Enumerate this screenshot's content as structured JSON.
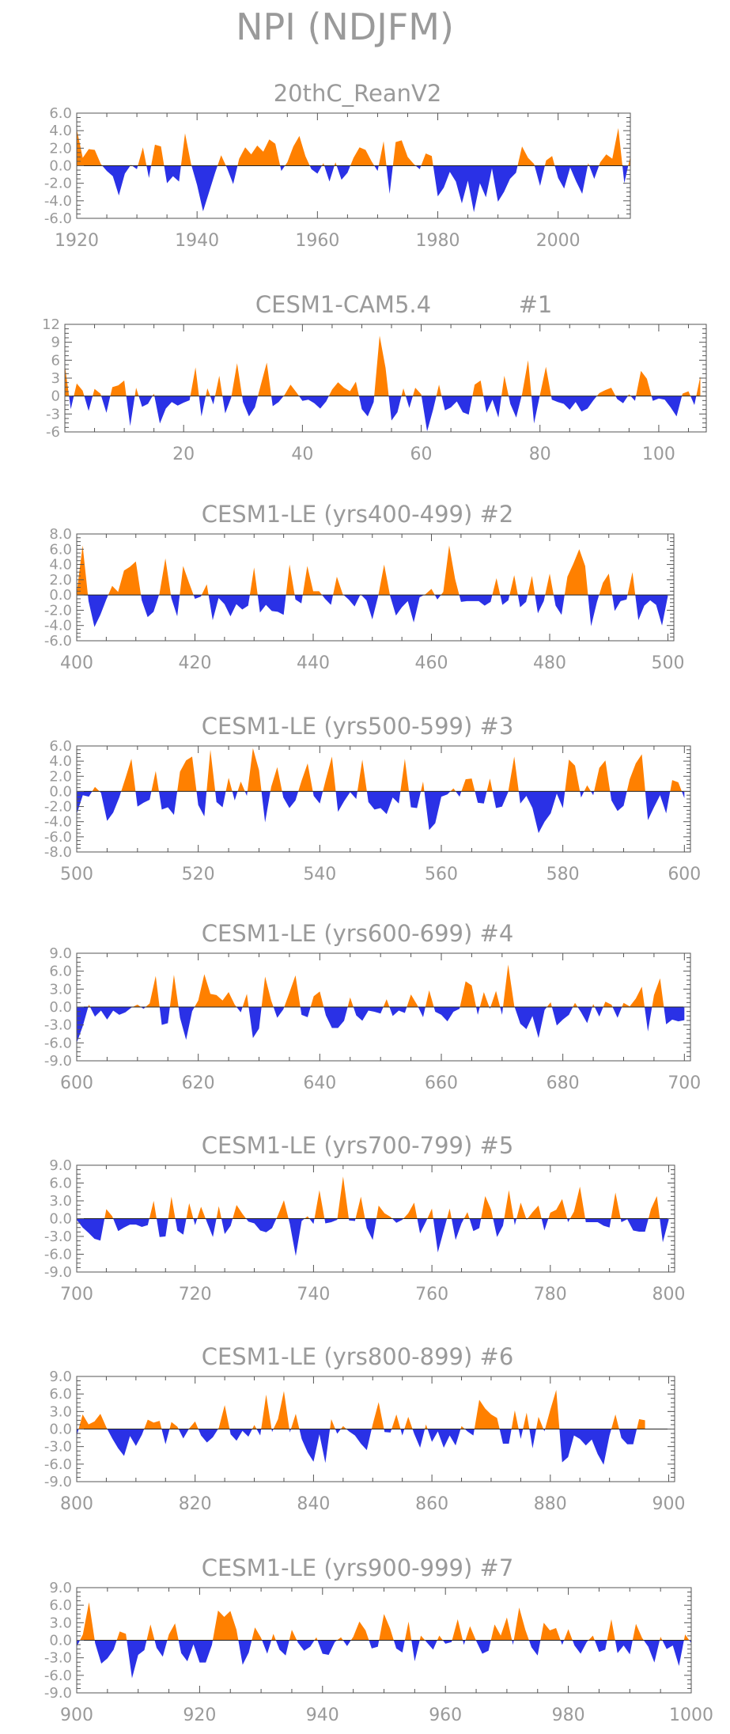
{
  "title": "NPI (NDJFM)",
  "colors": {
    "positive": "#ff8000",
    "negative": "#2a31e6",
    "text": "#9a9a9a",
    "axis": "#555555"
  },
  "chart_data": [
    {
      "type": "area",
      "title": "20thC_ReanV2",
      "xlim": [
        1920,
        2012
      ],
      "ylim": [
        -6,
        6
      ],
      "yticks": [
        6.0,
        4.0,
        2.0,
        0.0,
        -2.0,
        -4.0,
        -6.0
      ],
      "yticklabels": [
        "6.0",
        "4.0",
        "2.0",
        "0.0",
        "-2.0",
        "-4.0",
        "-6.0"
      ],
      "xticks": [
        1920,
        1940,
        1960,
        1980,
        2000
      ],
      "xticklabels": [
        "1920",
        "1940",
        "1960",
        "1980",
        "2000"
      ],
      "x_start": 1920,
      "values": [
        4.2,
        0.9,
        1.9,
        1.8,
        0.2,
        -0.6,
        -1.2,
        -3.4,
        -0.9,
        0.1,
        -0.4,
        2.1,
        -1.4,
        2.4,
        2.2,
        -2.0,
        -1.2,
        -1.8,
        3.7,
        0.2,
        -2.2,
        -5.2,
        -3.0,
        -0.8,
        1.2,
        -0.3,
        -2.1,
        0.8,
        2.1,
        1.3,
        2.3,
        1.6,
        3.0,
        2.5,
        -0.6,
        0.4,
        2.2,
        3.4,
        1.1,
        -0.4,
        -0.9,
        0.3,
        -1.8,
        0.4,
        -1.6,
        -0.8,
        0.9,
        2.1,
        1.8,
        0.5,
        -0.6,
        2.8,
        -3.2,
        2.7,
        2.9,
        1.0,
        0.2,
        -0.4,
        1.4,
        1.1,
        -3.5,
        -2.5,
        -0.7,
        -1.8,
        -4.3,
        -1.7,
        -5.3,
        -2.0,
        -3.6,
        -0.3,
        -4.1,
        -3.0,
        -1.5,
        -0.8,
        2.2,
        0.9,
        0.2,
        -2.3,
        0.6,
        1.1,
        -1.4,
        -2.6,
        -0.2,
        -1.8,
        -3.2,
        0.3,
        -1.5,
        0.4,
        1.3,
        0.8,
        4.3,
        -2.0,
        1.1
      ]
    },
    {
      "type": "area",
      "title": "CESM1-CAM5.4",
      "label": "#1",
      "xlim": [
        0,
        108
      ],
      "ylim": [
        -6,
        12
      ],
      "yticks": [
        12,
        9,
        6,
        3,
        0,
        -3,
        -6
      ],
      "yticklabels": [
        "12",
        "9",
        "6",
        "3",
        "0",
        "-3",
        "-6"
      ],
      "xticks": [
        20,
        40,
        60,
        80,
        100
      ],
      "xticklabels": [
        "20",
        "40",
        "60",
        "80",
        "100"
      ],
      "x_start": 0,
      "values": [
        5.2,
        -2.2,
        2.1,
        0.9,
        -2.5,
        1.2,
        0.4,
        -2.8,
        1.5,
        1.8,
        2.6,
        -5.0,
        1.4,
        -1.8,
        -1.3,
        0.4,
        -4.6,
        -2.1,
        -1.0,
        -1.6,
        -1.1,
        -0.7,
        4.8,
        -3.4,
        1.3,
        -1.4,
        3.4,
        -2.9,
        -0.3,
        5.5,
        -1.0,
        -3.4,
        -1.9,
        1.9,
        5.6,
        -1.7,
        -1.0,
        0.2,
        1.9,
        0.6,
        -0.8,
        -0.6,
        -1.2,
        -2.1,
        -0.9,
        1.1,
        2.3,
        1.4,
        0.8,
        2.4,
        -2.2,
        -3.4,
        -1.0,
        10.1,
        4.7,
        -4.1,
        -2.7,
        1.3,
        -2.0,
        1.4,
        0.3,
        -5.9,
        -2.3,
        1.9,
        -2.4,
        -1.9,
        -0.9,
        -2.7,
        -3.1,
        1.9,
        2.6,
        -2.8,
        -0.6,
        -3.6,
        3.4,
        -1.3,
        -3.6,
        0.4,
        6.0,
        -4.6,
        0.2,
        4.9,
        -0.6,
        -1.0,
        -1.3,
        -2.3,
        -1.0,
        -2.6,
        -2.1,
        -0.7,
        0.5,
        1.0,
        1.4,
        -0.5,
        -1.2,
        0.3,
        -0.8,
        4.2,
        2.9,
        -0.8,
        -0.4,
        -0.6,
        -1.9,
        -3.4,
        0.4,
        0.8,
        -1.5,
        3.3
      ]
    },
    {
      "type": "area",
      "title": "CESM1-LE (yrs400-499)",
      "label": "#2",
      "xlim": [
        400,
        501
      ],
      "ylim": [
        -6,
        8
      ],
      "yticks": [
        8.0,
        6.0,
        4.0,
        2.0,
        0.0,
        -2.0,
        -4.0,
        -6.0
      ],
      "yticklabels": [
        "8.0",
        "6.0",
        "4.0",
        "2.0",
        "0.0",
        "-2.0",
        "-4.0",
        "-6.0"
      ],
      "xticks": [
        400,
        420,
        440,
        460,
        480,
        500
      ],
      "xticklabels": [
        "400",
        "420",
        "440",
        "460",
        "480",
        "500"
      ],
      "x_start": 400,
      "values": [
        0.3,
        6.5,
        -0.8,
        -4.2,
        -2.6,
        -0.6,
        1.2,
        0.4,
        3.2,
        3.7,
        4.4,
        -0.7,
        -2.9,
        -2.2,
        0.2,
        4.8,
        -0.4,
        -2.8,
        3.8,
        1.6,
        -0.5,
        -0.2,
        1.4,
        -3.3,
        -0.4,
        -1.2,
        -2.8,
        -1.2,
        -1.9,
        -1.4,
        3.6,
        -2.3,
        -1.3,
        -2.1,
        -2.2,
        -2.6,
        4.0,
        -0.6,
        -1.1,
        3.8,
        0.5,
        0.5,
        -0.5,
        -1.3,
        2.4,
        0.1,
        -0.6,
        -1.5,
        0.1,
        -0.7,
        -3.2,
        -0.1,
        4.0,
        -0.1,
        -2.7,
        -1.6,
        -0.8,
        -3.6,
        -0.3,
        0.1,
        0.8,
        -0.6,
        0.4,
        6.5,
        2.1,
        -0.9,
        -0.8,
        -0.8,
        -0.8,
        -1.4,
        -0.9,
        2.2,
        -1.3,
        -0.7,
        2.6,
        -1.6,
        -0.9,
        2.5,
        -2.4,
        -0.8,
        2.8,
        -1.4,
        -2.6,
        2.4,
        4.1,
        6.0,
        3.8,
        -4.1,
        -0.9,
        1.6,
        2.8,
        -2.1,
        -0.8,
        -0.6,
        3.0,
        -3.3,
        -1.4,
        -0.7,
        -1.3,
        -4.0,
        -0.1
      ]
    },
    {
      "type": "area",
      "title": "CESM1-LE (yrs500-599)",
      "label": "#3",
      "xlim": [
        500,
        601
      ],
      "ylim": [
        -8,
        6
      ],
      "yticks": [
        6.0,
        4.0,
        2.0,
        0.0,
        -2.0,
        -4.0,
        -6.0,
        -8.0
      ],
      "yticklabels": [
        "6.0",
        "4.0",
        "2.0",
        "0.0",
        "-2.0",
        "-4.0",
        "-6.0",
        "-8.0"
      ],
      "xticks": [
        500,
        520,
        540,
        560,
        580,
        600
      ],
      "xticklabels": [
        "500",
        "520",
        "540",
        "560",
        "580",
        "600"
      ],
      "x_start": 500,
      "values": [
        -3.0,
        -0.5,
        -0.7,
        0.6,
        -0.2,
        -3.9,
        -2.8,
        -0.8,
        1.7,
        4.3,
        -2.0,
        -1.5,
        -1.1,
        2.7,
        -2.4,
        -2.1,
        -3.1,
        2.6,
        4.1,
        4.6,
        -1.8,
        -3.3,
        5.5,
        -1.4,
        -2.1,
        1.8,
        -1.2,
        1.3,
        -0.6,
        5.7,
        2.8,
        -4.1,
        0.6,
        3.2,
        -0.8,
        -2.2,
        -1.2,
        1.4,
        3.7,
        -0.6,
        -1.6,
        1.6,
        4.6,
        -2.7,
        -1.3,
        -0.1,
        -1.0,
        4.2,
        -1.4,
        -2.4,
        -2.2,
        -3.0,
        -0.8,
        -1.6,
        4.3,
        -2.1,
        -2.2,
        1.3,
        -5.1,
        -4.2,
        -0.7,
        -0.4,
        0.4,
        -0.7,
        1.6,
        1.7,
        -1.5,
        -1.6,
        1.7,
        -2.2,
        -2.0,
        -0.1,
        4.6,
        -1.6,
        -0.6,
        -2.2,
        -5.5,
        -4.0,
        -2.9,
        -0.3,
        -2.2,
        4.2,
        3.4,
        -0.8,
        0.8,
        -0.5,
        3.1,
        4.1,
        -1.2,
        -2.6,
        -1.9,
        1.6,
        3.7,
        4.9,
        -3.8,
        -2.1,
        -0.5,
        -2.9,
        1.5,
        1.2,
        -0.9
      ]
    },
    {
      "type": "area",
      "title": "CESM1-LE (yrs600-699)",
      "label": "#4",
      "xlim": [
        600,
        701
      ],
      "ylim": [
        -9,
        9
      ],
      "yticks": [
        9.0,
        6.0,
        3.0,
        0.0,
        -3.0,
        -6.0,
        -9.0
      ],
      "yticklabels": [
        "9.0",
        "6.0",
        "3.0",
        "0.0",
        "-3.0",
        "-6.0",
        "-9.0"
      ],
      "xticks": [
        600,
        620,
        640,
        660,
        680,
        700
      ],
      "xticklabels": [
        "600",
        "620",
        "640",
        "660",
        "680",
        "700"
      ],
      "x_start": 600,
      "values": [
        -6.0,
        -3.2,
        0.4,
        -1.6,
        -0.6,
        -2.1,
        -0.6,
        -1.3,
        -0.9,
        -0.1,
        0.4,
        -0.3,
        0.6,
        5.2,
        -3.0,
        -2.7,
        5.4,
        -1.8,
        -5.5,
        -0.7,
        1.1,
        5.5,
        2.2,
        2.0,
        1.1,
        2.5,
        0.4,
        -0.9,
        2.2,
        -5.2,
        -3.6,
        5.1,
        1.1,
        -1.8,
        -0.4,
        2.4,
        5.3,
        -1.3,
        -1.7,
        1.8,
        2.6,
        -1.4,
        -3.5,
        -3.5,
        -2.3,
        1.6,
        -1.4,
        -2.3,
        -0.6,
        -0.8,
        -1.1,
        1.3,
        -1.5,
        -0.6,
        -1.0,
        2.1,
        0.4,
        -1.7,
        2.8,
        -0.8,
        -1.3,
        -2.4,
        -0.8,
        -0.3,
        4.3,
        3.6,
        -1.3,
        2.5,
        -0.3,
        2.7,
        -1.3,
        7.1,
        0.2,
        -2.8,
        -3.7,
        -1.5,
        -5.2,
        -0.5,
        0.8,
        -3.1,
        -2.1,
        -1.3,
        0.7,
        -0.9,
        -2.7,
        0.5,
        -1.6,
        0.9,
        0.4,
        -1.8,
        0.7,
        0.1,
        1.4,
        3.4,
        -4.1,
        2.0,
        4.8,
        -2.9,
        -2.1,
        -2.4,
        -2.2
      ]
    },
    {
      "type": "area",
      "title": "CESM1-LE (yrs700-799)",
      "label": "#5",
      "xlim": [
        700,
        801
      ],
      "ylim": [
        -9,
        9
      ],
      "yticks": [
        9.0,
        6.0,
        3.0,
        0.0,
        -3.0,
        -6.0,
        -9.0
      ],
      "yticklabels": [
        "9.0",
        "6.0",
        "3.0",
        "0.0",
        "-3.0",
        "-6.0",
        "-9.0"
      ],
      "xticks": [
        700,
        720,
        740,
        760,
        780,
        800
      ],
      "xticklabels": [
        "700",
        "720",
        "740",
        "760",
        "780",
        "800"
      ],
      "x_start": 700,
      "values": [
        -0.2,
        -1.5,
        -2.4,
        -3.4,
        -3.7,
        1.6,
        0.4,
        -2.1,
        -1.5,
        -1.0,
        -1.0,
        -1.4,
        -1.1,
        3.0,
        -3.1,
        -3.0,
        3.7,
        -2.0,
        -2.7,
        2.6,
        -1.1,
        2.0,
        -0.6,
        -3.1,
        2.1,
        -2.6,
        -1.2,
        2.3,
        0.8,
        -0.5,
        -0.8,
        -2.0,
        -2.3,
        -1.6,
        0.6,
        3.1,
        -0.9,
        -6.3,
        -0.4,
        0.4,
        -0.9,
        4.8,
        -0.8,
        -0.6,
        -0.2,
        7.1,
        -0.3,
        -0.4,
        3.7,
        -1.6,
        -3.6,
        2.2,
        0.9,
        0.3,
        -0.7,
        -0.2,
        0.9,
        2.7,
        -2.5,
        -0.5,
        1.7,
        -5.7,
        -2.0,
        1.7,
        -3.6,
        -0.8,
        1.1,
        -2.1,
        -1.6,
        3.8,
        1.5,
        -3.1,
        -1.2,
        4.8,
        -1.1,
        2.7,
        -0.2,
        1.1,
        2.2,
        -2.0,
        1.0,
        1.5,
        3.3,
        -0.6,
        1.2,
        5.4,
        -0.6,
        -0.6,
        -0.6,
        -1.2,
        -1.5,
        4.4,
        -0.6,
        -0.1,
        -2.0,
        -2.2,
        -2.2,
        1.6,
        3.8,
        -4.0,
        -0.2
      ]
    },
    {
      "type": "area",
      "title": "CESM1-LE (yrs800-899)",
      "label": "#6",
      "xlim": [
        800,
        901
      ],
      "ylim": [
        -9,
        9
      ],
      "yticks": [
        9.0,
        6.0,
        3.0,
        0.0,
        -3.0,
        -6.0,
        -9.0
      ],
      "yticklabels": [
        "9.0",
        "6.0",
        "3.0",
        "0.0",
        "-3.0",
        "-6.0",
        "-9.0"
      ],
      "xticks": [
        800,
        820,
        840,
        860,
        880,
        900
      ],
      "xticklabels": [
        "800",
        "820",
        "840",
        "860",
        "880",
        "900"
      ],
      "x_start": 800,
      "values": [
        -1.2,
        2.5,
        0.8,
        1.3,
        2.6,
        0.3,
        -1.6,
        -3.3,
        -4.6,
        -1.2,
        -2.9,
        -1.0,
        1.6,
        1.1,
        1.4,
        -2.6,
        1.2,
        0.4,
        -1.6,
        0.1,
        1.3,
        -1.1,
        -2.3,
        -1.4,
        0.2,
        4.1,
        -0.9,
        -2.0,
        -0.3,
        -1.3,
        0.7,
        -1.1,
        5.9,
        -0.5,
        1.7,
        6.5,
        -0.6,
        2.6,
        -1.7,
        -4.0,
        -5.6,
        -0.9,
        -5.8,
        1.7,
        -0.8,
        0.5,
        -0.4,
        -1.1,
        -2.5,
        -3.6,
        0.8,
        4.6,
        -0.5,
        -0.6,
        2.5,
        -1.1,
        2.1,
        -0.8,
        -3.2,
        0.8,
        -2.2,
        -0.4,
        -3.2,
        -1.1,
        -2.8,
        0.5,
        -0.4,
        -1.1,
        5.0,
        3.5,
        2.5,
        1.9,
        -2.5,
        -2.5,
        3.2,
        -1.7,
        2.8,
        -3.3,
        2.1,
        -0.4,
        3.3,
        6.7,
        -5.7,
        -4.8,
        -1.1,
        -1.7,
        -2.8,
        -1.8,
        -4.3,
        -6.1,
        -1.1,
        2.5,
        -1.5,
        -2.6,
        -2.6,
        1.7,
        1.5
      ]
    },
    {
      "type": "area",
      "title": "CESM1-LE (yrs900-999)",
      "label": "#7",
      "xlim": [
        900,
        1000
      ],
      "ylim": [
        -9,
        9
      ],
      "yticks": [
        9.0,
        6.0,
        3.0,
        0.0,
        -3.0,
        -6.0,
        -9.0
      ],
      "yticklabels": [
        "9.0",
        "6.0",
        "3.0",
        "0.0",
        "-3.0",
        "-6.0",
        "-9.0"
      ],
      "xticks": [
        900,
        920,
        940,
        960,
        980,
        1000
      ],
      "xticklabels": [
        "900",
        "920",
        "940",
        "960",
        "980",
        "1000"
      ],
      "x_start": 900,
      "values": [
        -1.1,
        1.0,
        6.5,
        -0.5,
        -4.0,
        -3.1,
        -1.6,
        1.5,
        1.1,
        -6.5,
        -2.5,
        -1.7,
        2.7,
        -1.3,
        -2.8,
        1.0,
        2.9,
        -2.2,
        -3.6,
        -0.7,
        -3.8,
        -3.8,
        -0.8,
        5.1,
        4.0,
        5.0,
        1.8,
        -4.2,
        -2.1,
        2.2,
        0.4,
        -2.3,
        1.1,
        -1.6,
        -2.6,
        1.8,
        -0.4,
        -1.8,
        -1.1,
        0.5,
        -2.3,
        -2.5,
        -0.3,
        0.5,
        -1.0,
        0.6,
        3.2,
        1.7,
        -1.4,
        -1.1,
        4.5,
        2.0,
        -1.4,
        -2.1,
        3.2,
        -3.6,
        0.8,
        -0.4,
        -1.6,
        0.8,
        -0.6,
        -0.3,
        3.6,
        -0.8,
        2.4,
        -0.1,
        -2.3,
        -1.8,
        2.7,
        0.8,
        3.9,
        -0.8,
        5.6,
        1.8,
        -1.2,
        -2.6,
        3.0,
        1.7,
        2.1,
        -0.8,
        1.9,
        -0.9,
        -2.3,
        -0.3,
        0.8,
        -2.0,
        -1.6,
        3.6,
        -2.2,
        -0.9,
        -2.4,
        2.8,
        0.4,
        -1.1,
        -3.8,
        0.6,
        -1.5,
        -0.9,
        -4.4,
        1.0,
        -0.5
      ]
    }
  ]
}
